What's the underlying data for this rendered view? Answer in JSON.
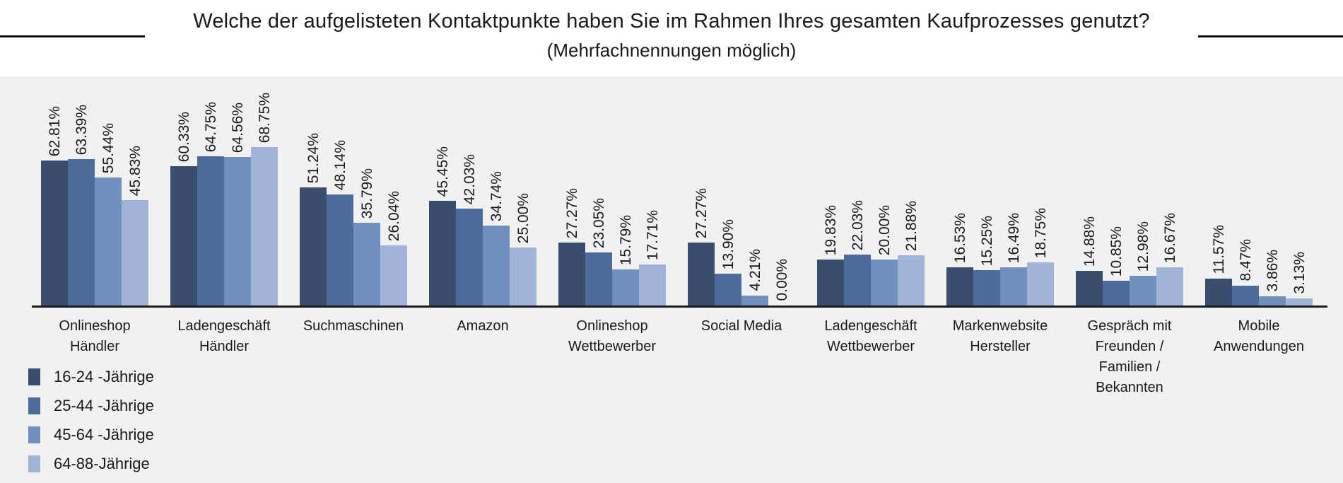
{
  "title": "Welche der aufgelisteten Kontaktpunkte haben Sie im Rahmen Ihres gesamten Kaufprozesses genutzt?",
  "subtitle": "(Mehrfachnennungen möglich)",
  "colors": {
    "panel_background": "#f1f1f2",
    "axis_line": "#1c1c1c",
    "text": "#1a1a1a"
  },
  "chart_data": {
    "type": "bar",
    "layout": "grouped-vertical",
    "title": "Welche der aufgelisteten Kontaktpunkte haben Sie im Rahmen Ihres gesamten Kaufprozesses genutzt?",
    "subtitle": "(Mehrfachnennungen möglich)",
    "value_unit": "%",
    "value_label_format": "two-decimals-percent",
    "ylim": [
      0,
      86
    ],
    "grid": false,
    "legend_position": "bottom-left",
    "categories": [
      "Onlineshop Händler",
      "Ladengeschäft Händler",
      "Suchmaschinen",
      "Amazon",
      "Onlineshop Wettbewerber",
      "Social Media",
      "Ladengeschäft Wettbewerber",
      "Markenwebsite Hersteller",
      "Gespräch mit Freunden / Familien / Bekannten",
      "Mobile Anwendungen"
    ],
    "series": [
      {
        "name": "16-24 -Jährige",
        "color": "#394e6e",
        "values": [
          62.81,
          60.33,
          51.24,
          45.45,
          27.27,
          27.27,
          19.83,
          16.53,
          14.88,
          11.57
        ]
      },
      {
        "name": "25-44 -Jährige",
        "color": "#4c6d9c",
        "values": [
          63.39,
          64.75,
          48.14,
          42.03,
          23.05,
          13.9,
          22.03,
          15.25,
          10.85,
          8.47
        ]
      },
      {
        "name": "45-64 -Jährige",
        "color": "#7090be",
        "values": [
          55.44,
          64.56,
          35.79,
          34.74,
          15.79,
          4.21,
          20.0,
          16.49,
          12.98,
          3.86
        ]
      },
      {
        "name": "64-88-Jährige",
        "color": "#a0b4d7",
        "values": [
          45.83,
          68.75,
          26.04,
          25.0,
          17.71,
          0.0,
          21.88,
          18.75,
          16.67,
          3.13
        ]
      }
    ]
  }
}
